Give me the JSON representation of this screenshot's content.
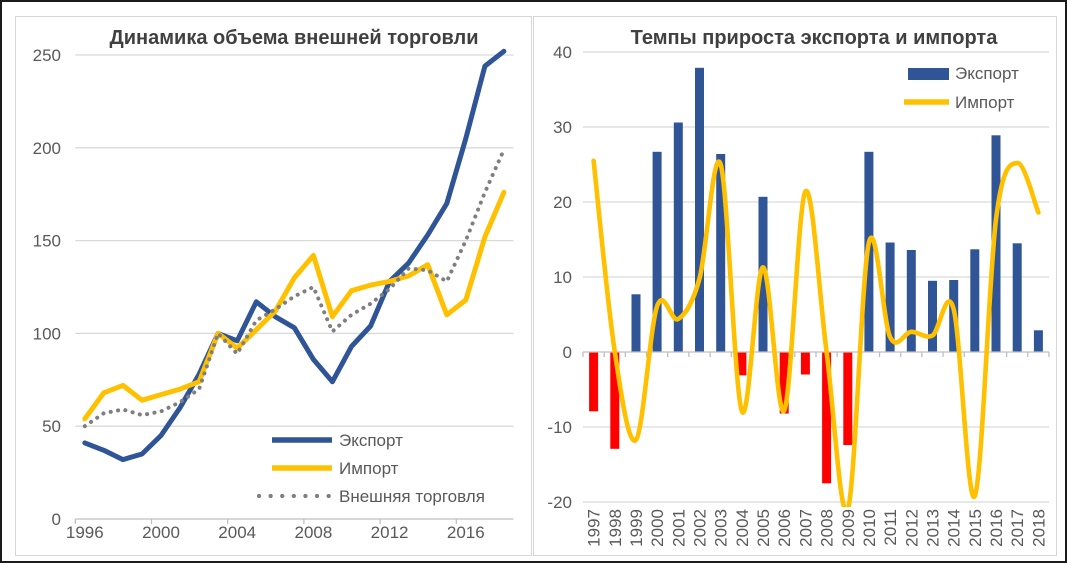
{
  "page": {
    "background": "#ffffff",
    "outer_border_color": "#1b1b1b",
    "panel_border_color": "#d6d6d6"
  },
  "styles": {
    "title_color": "#404040",
    "tick_label_color": "#595959",
    "gridline_color": "#d9d9d9",
    "axis_line_color": "#bfbfbf"
  },
  "chart_data": [
    {
      "type": "line",
      "title": "Динамика объема внешней торговли",
      "x": [
        1996,
        1997,
        1998,
        1999,
        2000,
        2001,
        2002,
        2003,
        2004,
        2005,
        2006,
        2007,
        2008,
        2009,
        2010,
        2011,
        2012,
        2013,
        2014,
        2015,
        2016,
        2017,
        2018
      ],
      "x_tick_labels": [
        "1996",
        "2000",
        "2004",
        "2008",
        "2012",
        "2016"
      ],
      "ylim": [
        0,
        250
      ],
      "yticks": [
        0,
        50,
        100,
        150,
        200,
        250
      ],
      "grid": "horizontal",
      "legend_position": "inside-bottom-right",
      "series": [
        {
          "name": "Экспорт",
          "style": "solid",
          "color": "#2F5597",
          "values": [
            41,
            37,
            32,
            35,
            45,
            60,
            78,
            100,
            96,
            117,
            109,
            103,
            86,
            74,
            93,
            104,
            128,
            138,
            153,
            170,
            205,
            244,
            252
          ]
        },
        {
          "name": "Импорт",
          "style": "solid",
          "color": "#FFC000",
          "values": [
            54,
            68,
            72,
            64,
            67,
            70,
            74,
            100,
            92,
            102,
            112,
            130,
            142,
            109,
            123,
            126,
            128,
            131,
            137,
            110,
            118,
            152,
            176
          ]
        },
        {
          "name": "Внешняя торговля",
          "style": "dotted",
          "color": "#7F7F7F",
          "values": [
            50,
            57,
            59,
            56,
            58,
            63,
            70,
            100,
            89,
            107,
            113,
            120,
            125,
            101,
            110,
            116,
            124,
            135,
            134,
            128,
            150,
            176,
            199
          ]
        }
      ]
    },
    {
      "type": "bar",
      "title": "Темпы прироста экспорта и импорта",
      "categories": [
        "1997",
        "1998",
        "1999",
        "2000",
        "2001",
        "2002",
        "2003",
        "2004",
        "2005",
        "2006",
        "2007",
        "2008",
        "2009",
        "2010",
        "2011",
        "2012",
        "2013",
        "2014",
        "2015",
        "2016",
        "2017",
        "2018"
      ],
      "ylim": [
        -20,
        40
      ],
      "yticks": [
        40,
        30,
        20,
        10,
        0,
        -10,
        -20
      ],
      "grid": "horizontal",
      "legend_position": "inside-top-right",
      "series": [
        {
          "name": "Экспорт",
          "chart_type": "bar",
          "color_positive": "#2F5597",
          "color_negative": "#FF0000",
          "values": [
            -7.9,
            -12.9,
            7.7,
            26.7,
            30.6,
            37.9,
            26.4,
            -3.1,
            20.7,
            -8.2,
            -3.0,
            -17.5,
            -12.4,
            26.7,
            14.6,
            13.6,
            9.5,
            9.6,
            13.7,
            28.9,
            14.5,
            2.9
          ]
        },
        {
          "name": "Импорт",
          "chart_type": "smooth-line",
          "color": "#FFC000",
          "values": [
            25.5,
            0,
            -11.7,
            6.1,
            4.4,
            9.8,
            25.0,
            -7.9,
            11.3,
            -7.8,
            21.4,
            0,
            -21,
            14.6,
            2.0,
            2.7,
            2.2,
            5.7,
            -19.2,
            17.7,
            25.2,
            18.6
          ]
        }
      ]
    }
  ]
}
